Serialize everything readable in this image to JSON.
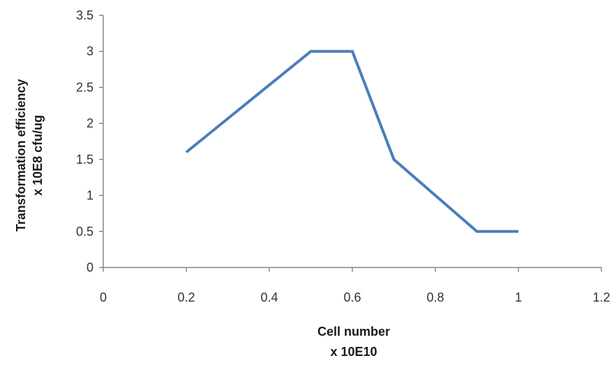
{
  "chart_data": {
    "type": "line",
    "title": "",
    "xlabel_lines": [
      "Cell number",
      "x 10E10"
    ],
    "ylabel_lines": [
      "Transformation efficiency",
      "x 10E8 cfu/ug"
    ],
    "xlim": [
      0,
      1.2
    ],
    "ylim": [
      0,
      3.5
    ],
    "x_ticks": [
      "0",
      "0.2",
      "0.4",
      "0.6",
      "0.8",
      "1",
      "1.2"
    ],
    "y_ticks": [
      "0",
      "0.5",
      "1",
      "1.5",
      "2",
      "2.5",
      "3",
      "3.5"
    ],
    "grid": false,
    "legend": "none",
    "series": [
      {
        "color": "#4a7ebb",
        "x": [
          0.2,
          0.5,
          0.6,
          0.7,
          0.9,
          1.0
        ],
        "y": [
          1.6,
          3.0,
          3.0,
          1.5,
          0.5,
          0.5
        ]
      }
    ]
  }
}
